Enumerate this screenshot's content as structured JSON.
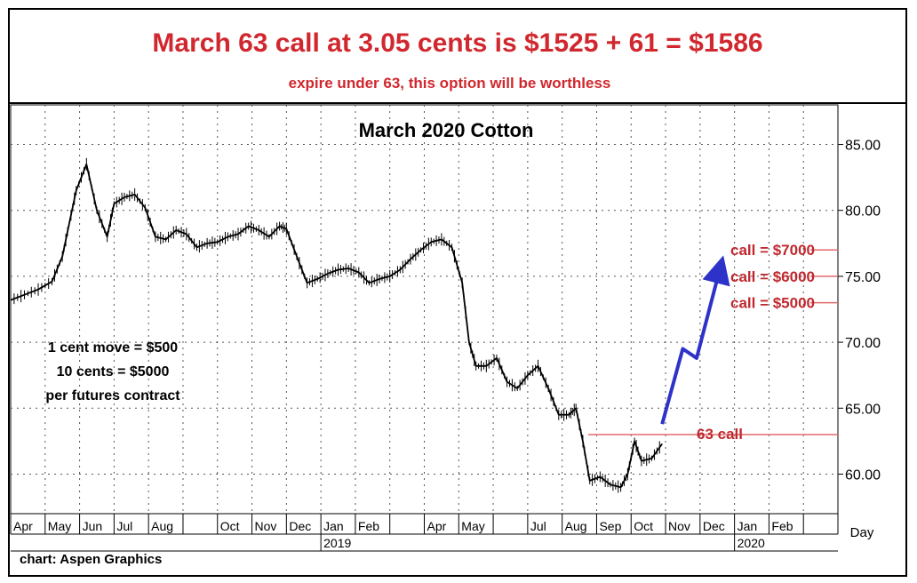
{
  "header": {
    "headline": "March 63 call at 3.05 cents is $1525 + 61 = $1586",
    "subline": "expire under 63, this option will be worthless"
  },
  "chart_data": {
    "type": "line",
    "title": "March 2020 Cotton",
    "xlabel": "",
    "ylabel": "",
    "x_axis_label": "Day",
    "ylim": [
      57.0,
      88.0
    ],
    "y_ticks": [
      "85.00",
      "80.00",
      "75.00",
      "70.00",
      "65.00",
      "60.00"
    ],
    "y_tick_values": [
      85,
      80,
      75,
      70,
      65,
      60
    ],
    "month_labels": [
      "Apr",
      "May",
      "Jun",
      "Jul",
      "Aug",
      "Oct",
      "Nov",
      "Dec",
      "Jan",
      "Feb",
      "Apr",
      "May",
      "Jul",
      "Aug",
      "Sep",
      "Oct",
      "Nov",
      "Dec",
      "Jan",
      "Feb"
    ],
    "month_index": [
      0,
      1,
      2,
      3,
      4,
      6,
      7,
      8,
      9,
      10,
      12,
      13,
      15,
      16,
      17,
      18,
      19,
      20,
      21,
      22
    ],
    "year_labels": [
      {
        "label": "2019",
        "month_index": 9
      },
      {
        "label": "2020",
        "month_index": 21
      }
    ],
    "months_span": 24,
    "series": [
      {
        "points": [
          [
            0,
            73.2
          ],
          [
            0.4,
            73.6
          ],
          [
            0.8,
            74.0
          ],
          [
            1.2,
            74.6
          ],
          [
            1.5,
            76.5
          ],
          [
            1.7,
            79.0
          ],
          [
            1.9,
            81.5
          ],
          [
            2.2,
            83.5
          ],
          [
            2.5,
            80.0
          ],
          [
            2.8,
            78.0
          ],
          [
            3.0,
            80.5
          ],
          [
            3.3,
            81.0
          ],
          [
            3.6,
            81.2
          ],
          [
            3.9,
            80.2
          ],
          [
            4.2,
            78.0
          ],
          [
            4.5,
            77.8
          ],
          [
            4.8,
            78.5
          ],
          [
            5.1,
            78.2
          ],
          [
            5.4,
            77.2
          ],
          [
            5.7,
            77.5
          ],
          [
            6.0,
            77.6
          ],
          [
            6.3,
            78.0
          ],
          [
            6.6,
            78.2
          ],
          [
            6.9,
            78.8
          ],
          [
            7.2,
            78.5
          ],
          [
            7.5,
            78.0
          ],
          [
            7.8,
            78.8
          ],
          [
            8.0,
            78.6
          ],
          [
            8.3,
            76.5
          ],
          [
            8.6,
            74.5
          ],
          [
            8.9,
            74.8
          ],
          [
            9.2,
            75.2
          ],
          [
            9.5,
            75.5
          ],
          [
            9.8,
            75.6
          ],
          [
            10.1,
            75.3
          ],
          [
            10.4,
            74.5
          ],
          [
            10.7,
            74.8
          ],
          [
            11.0,
            75.0
          ],
          [
            11.3,
            75.5
          ],
          [
            11.6,
            76.3
          ],
          [
            11.9,
            77.0
          ],
          [
            12.2,
            77.6
          ],
          [
            12.5,
            77.8
          ],
          [
            12.8,
            77.2
          ],
          [
            13.1,
            74.5
          ],
          [
            13.3,
            70.0
          ],
          [
            13.5,
            68.2
          ],
          [
            13.8,
            68.2
          ],
          [
            14.1,
            68.8
          ],
          [
            14.4,
            67.0
          ],
          [
            14.7,
            66.5
          ],
          [
            15.0,
            67.5
          ],
          [
            15.3,
            68.2
          ],
          [
            15.6,
            66.5
          ],
          [
            15.9,
            64.5
          ],
          [
            16.2,
            64.5
          ],
          [
            16.4,
            65.0
          ],
          [
            16.6,
            62.5
          ],
          [
            16.8,
            59.5
          ],
          [
            17.1,
            59.8
          ],
          [
            17.4,
            59.2
          ],
          [
            17.7,
            59.0
          ],
          [
            17.9,
            60.0
          ],
          [
            18.1,
            62.5
          ],
          [
            18.3,
            61.0
          ],
          [
            18.6,
            61.2
          ],
          [
            18.9,
            62.3
          ]
        ]
      }
    ],
    "strike_line": {
      "value": 63,
      "label": "63 call"
    },
    "projection": {
      "points": [
        [
          18.9,
          63.8
        ],
        [
          19.5,
          69.5
        ],
        [
          19.9,
          68.8
        ],
        [
          20.6,
          75.8
        ]
      ]
    },
    "call_levels": [
      {
        "label": "call = $7000",
        "value": 77
      },
      {
        "label": "call = $6000",
        "value": 75
      },
      {
        "label": "call = $5000",
        "value": 73
      }
    ],
    "note_lines": [
      "1 cent move = $500",
      "10 cents = $5000",
      "per futures contract"
    ],
    "source": "chart: Aspen Graphics",
    "colors": {
      "headline": "#d0282e",
      "price": "#000000",
      "projection": "#2d32c8",
      "strike": "#e06a6a",
      "annotation": "#c0282e"
    }
  }
}
